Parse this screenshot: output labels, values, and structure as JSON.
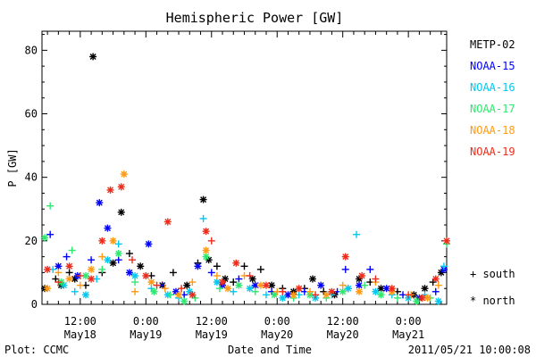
{
  "chart_data": {
    "type": "scatter",
    "title": "Hemispheric Power [GW]",
    "xlabel": "Date and Time",
    "ylabel": "P [GW]",
    "ylim": [
      0,
      86
    ],
    "xlim": [
      "2011-05-18 05:00",
      "2011-05-21 07:00"
    ],
    "x_ticks": [
      {
        "t": "2011-05-18 12:00",
        "label": "12:00",
        "sub": "May18"
      },
      {
        "t": "2011-05-19 00:00",
        "label": "0:00",
        "sub": "May19"
      },
      {
        "t": "2011-05-19 12:00",
        "label": "12:00",
        "sub": "May19"
      },
      {
        "t": "2011-05-20 00:00",
        "label": "0:00",
        "sub": "May20"
      },
      {
        "t": "2011-05-20 12:00",
        "label": "12:00",
        "sub": "May20"
      },
      {
        "t": "2011-05-21 00:00",
        "label": "0:00",
        "sub": "May21"
      }
    ],
    "y_ticks": [
      0,
      20,
      40,
      60,
      80
    ],
    "grid": false,
    "legend_position": "right",
    "marker_legend": [
      {
        "symbol": "+",
        "label": "south"
      },
      {
        "symbol": "*",
        "label": "north"
      }
    ],
    "series": [
      {
        "name": "METP-02",
        "color": "#000000",
        "points": [
          [
            "2011-05-18 05:30",
            5,
            "*"
          ],
          [
            "2011-05-18 07:30",
            8,
            "+"
          ],
          [
            "2011-05-18 08:30",
            6,
            "*"
          ],
          [
            "2011-05-18 10:00",
            10,
            "+"
          ],
          [
            "2011-05-18 11:00",
            8,
            "*"
          ],
          [
            "2011-05-18 13:00",
            6,
            "+"
          ],
          [
            "2011-05-18 14:20",
            78,
            "*"
          ],
          [
            "2011-05-18 16:00",
            10,
            "+"
          ],
          [
            "2011-05-18 18:00",
            13,
            "*"
          ],
          [
            "2011-05-18 19:30",
            29,
            "*"
          ],
          [
            "2011-05-18 21:00",
            16,
            "+"
          ],
          [
            "2011-05-18 23:00",
            12,
            "*"
          ],
          [
            "2011-05-19 01:00",
            9,
            "+"
          ],
          [
            "2011-05-19 03:00",
            6,
            "*"
          ],
          [
            "2011-05-19 05:00",
            10,
            "+"
          ],
          [
            "2011-05-19 07:30",
            6,
            "*"
          ],
          [
            "2011-05-19 09:30",
            13,
            "+"
          ],
          [
            "2011-05-19 10:30",
            33,
            "*"
          ],
          [
            "2011-05-19 11:30",
            14,
            "*"
          ],
          [
            "2011-05-19 13:00",
            12,
            "+"
          ],
          [
            "2011-05-19 14:30",
            8,
            "*"
          ],
          [
            "2011-05-19 16:00",
            7,
            "+"
          ],
          [
            "2011-05-19 18:00",
            12,
            "+"
          ],
          [
            "2011-05-19 19:30",
            8,
            "*"
          ],
          [
            "2011-05-19 21:00",
            11,
            "+"
          ],
          [
            "2011-05-19 23:00",
            6,
            "*"
          ],
          [
            "2011-05-20 01:00",
            5,
            "+"
          ],
          [
            "2011-05-20 03:00",
            4,
            "*"
          ],
          [
            "2011-05-20 05:00",
            5,
            "+"
          ],
          [
            "2011-05-20 06:30",
            8,
            "*"
          ],
          [
            "2011-05-20 08:30",
            4,
            "+"
          ],
          [
            "2011-05-20 10:30",
            3,
            "*"
          ],
          [
            "2011-05-20 13:00",
            5,
            "+"
          ],
          [
            "2011-05-20 15:00",
            8,
            "*"
          ],
          [
            "2011-05-20 17:00",
            7,
            "+"
          ],
          [
            "2011-05-20 19:00",
            5,
            "*"
          ],
          [
            "2011-05-20 22:00",
            4,
            "+"
          ],
          [
            "2011-05-21 01:00",
            3,
            "*"
          ],
          [
            "2011-05-21 03:00",
            5,
            "*"
          ],
          [
            "2011-05-21 04:30",
            7,
            "+"
          ],
          [
            "2011-05-21 06:00",
            10,
            "*"
          ]
        ]
      },
      {
        "name": "NOAA-15",
        "color": "#0000ff",
        "points": [
          [
            "2011-05-18 06:30",
            22,
            "+"
          ],
          [
            "2011-05-18 08:00",
            12,
            "*"
          ],
          [
            "2011-05-18 09:30",
            15,
            "+"
          ],
          [
            "2011-05-18 11:30",
            9,
            "*"
          ],
          [
            "2011-05-18 14:00",
            14,
            "+"
          ],
          [
            "2011-05-18 15:30",
            32,
            "*"
          ],
          [
            "2011-05-18 17:00",
            24,
            "*"
          ],
          [
            "2011-05-18 19:00",
            14,
            "+"
          ],
          [
            "2011-05-18 21:00",
            10,
            "*"
          ],
          [
            "2011-05-19 00:30",
            19,
            "*"
          ],
          [
            "2011-05-19 03:00",
            6,
            "+"
          ],
          [
            "2011-05-19 05:30",
            4,
            "*"
          ],
          [
            "2011-05-19 07:00",
            3,
            "+"
          ],
          [
            "2011-05-19 09:30",
            12,
            "*"
          ],
          [
            "2011-05-19 12:00",
            10,
            "+"
          ],
          [
            "2011-05-19 14:00",
            6,
            "*"
          ],
          [
            "2011-05-19 17:00",
            8,
            "+"
          ],
          [
            "2011-05-19 20:00",
            6,
            "*"
          ],
          [
            "2011-05-19 23:00",
            4,
            "+"
          ],
          [
            "2011-05-20 02:00",
            3,
            "*"
          ],
          [
            "2011-05-20 05:00",
            4,
            "+"
          ],
          [
            "2011-05-20 08:00",
            6,
            "*"
          ],
          [
            "2011-05-20 11:00",
            4,
            "+"
          ],
          [
            "2011-05-20 12:30",
            11,
            "+"
          ],
          [
            "2011-05-20 15:00",
            6,
            "*"
          ],
          [
            "2011-05-20 17:00",
            11,
            "+"
          ],
          [
            "2011-05-20 20:00",
            5,
            "*"
          ],
          [
            "2011-05-20 23:00",
            3,
            "+"
          ],
          [
            "2011-05-21 02:00",
            2,
            "*"
          ],
          [
            "2011-05-21 05:00",
            4,
            "+"
          ],
          [
            "2011-05-21 06:30",
            11,
            "*"
          ]
        ]
      },
      {
        "name": "NOAA-16",
        "color": "#00c8f0",
        "points": [
          [
            "2011-05-18 07:00",
            11,
            "+"
          ],
          [
            "2011-05-18 09:00",
            6,
            "*"
          ],
          [
            "2011-05-18 11:00",
            4,
            "+"
          ],
          [
            "2011-05-18 13:00",
            3,
            "*"
          ],
          [
            "2011-05-18 15:00",
            8,
            "+"
          ],
          [
            "2011-05-18 17:00",
            14,
            "*"
          ],
          [
            "2011-05-18 19:00",
            19,
            "+"
          ],
          [
            "2011-05-18 22:00",
            9,
            "*"
          ],
          [
            "2011-05-19 01:00",
            5,
            "+"
          ],
          [
            "2011-05-19 04:00",
            3,
            "*"
          ],
          [
            "2011-05-19 06:00",
            2,
            "+"
          ],
          [
            "2011-05-19 08:00",
            4,
            "*"
          ],
          [
            "2011-05-19 10:30",
            27,
            "+"
          ],
          [
            "2011-05-19 13:00",
            7,
            "*"
          ],
          [
            "2011-05-19 16:00",
            4,
            "+"
          ],
          [
            "2011-05-19 19:00",
            5,
            "*"
          ],
          [
            "2011-05-19 22:00",
            3,
            "+"
          ],
          [
            "2011-05-20 01:00",
            2,
            "*"
          ],
          [
            "2011-05-20 04:00",
            3,
            "+"
          ],
          [
            "2011-05-20 07:00",
            2,
            "*"
          ],
          [
            "2011-05-20 10:00",
            3,
            "+"
          ],
          [
            "2011-05-20 13:00",
            5,
            "*"
          ],
          [
            "2011-05-20 14:30",
            22,
            "+"
          ],
          [
            "2011-05-20 18:00",
            4,
            "*"
          ],
          [
            "2011-05-20 21:00",
            3,
            "+"
          ],
          [
            "2011-05-21 00:00",
            2,
            "*"
          ],
          [
            "2011-05-21 03:00",
            3,
            "+"
          ],
          [
            "2011-05-21 05:30",
            1,
            "*"
          ],
          [
            "2011-05-21 06:30",
            12,
            "+"
          ]
        ]
      },
      {
        "name": "NOAA-17",
        "color": "#2ee86e",
        "points": [
          [
            "2011-05-18 05:30",
            21,
            "*"
          ],
          [
            "2011-05-18 06:30",
            31,
            "+"
          ],
          [
            "2011-05-18 08:30",
            7,
            "*"
          ],
          [
            "2011-05-18 10:30",
            17,
            "+"
          ],
          [
            "2011-05-18 13:00",
            9,
            "*"
          ],
          [
            "2011-05-18 16:00",
            11,
            "+"
          ],
          [
            "2011-05-18 19:00",
            16,
            "*"
          ],
          [
            "2011-05-18 22:00",
            7,
            "+"
          ],
          [
            "2011-05-19 01:30",
            4,
            "*"
          ],
          [
            "2011-05-19 04:30",
            3,
            "+"
          ],
          [
            "2011-05-19 07:00",
            1,
            "*"
          ],
          [
            "2011-05-19 09:00",
            2,
            "+"
          ],
          [
            "2011-05-19 11:00",
            15,
            "*"
          ],
          [
            "2011-05-19 13:30",
            5,
            "+"
          ],
          [
            "2011-05-19 17:00",
            6,
            "*"
          ],
          [
            "2011-05-19 20:00",
            4,
            "+"
          ],
          [
            "2011-05-19 23:30",
            3,
            "*"
          ],
          [
            "2011-05-20 03:00",
            2,
            "+"
          ],
          [
            "2011-05-20 06:00",
            3,
            "*"
          ],
          [
            "2011-05-20 09:00",
            2,
            "+"
          ],
          [
            "2011-05-20 12:00",
            4,
            "*"
          ],
          [
            "2011-05-20 16:00",
            6,
            "+"
          ],
          [
            "2011-05-20 19:00",
            3,
            "*"
          ],
          [
            "2011-05-20 22:00",
            2,
            "+"
          ],
          [
            "2011-05-21 01:30",
            1,
            "*"
          ],
          [
            "2011-05-21 04:00",
            2,
            "+"
          ],
          [
            "2011-05-21 07:00",
            19,
            "+"
          ]
        ]
      },
      {
        "name": "NOAA-18",
        "color": "#ff9a14",
        "points": [
          [
            "2011-05-18 06:00",
            5,
            "*"
          ],
          [
            "2011-05-18 08:00",
            10,
            "+"
          ],
          [
            "2011-05-18 10:00",
            8,
            "*"
          ],
          [
            "2011-05-18 12:00",
            6,
            "+"
          ],
          [
            "2011-05-18 14:00",
            11,
            "*"
          ],
          [
            "2011-05-18 16:00",
            15,
            "+"
          ],
          [
            "2011-05-18 18:00",
            20,
            "*"
          ],
          [
            "2011-05-18 20:00",
            41,
            "*"
          ],
          [
            "2011-05-18 22:00",
            4,
            "+"
          ],
          [
            "2011-05-19 01:00",
            7,
            "*"
          ],
          [
            "2011-05-19 03:30",
            5,
            "+"
          ],
          [
            "2011-05-19 06:00",
            3,
            "*"
          ],
          [
            "2011-05-19 08:30",
            7,
            "+"
          ],
          [
            "2011-05-19 11:00",
            17,
            "*"
          ],
          [
            "2011-05-19 13:00",
            9,
            "+"
          ],
          [
            "2011-05-19 15:00",
            5,
            "*"
          ],
          [
            "2011-05-19 18:00",
            9,
            "+"
          ],
          [
            "2011-05-19 21:00",
            6,
            "*"
          ],
          [
            "2011-05-20 00:00",
            4,
            "+"
          ],
          [
            "2011-05-20 03:00",
            3,
            "*"
          ],
          [
            "2011-05-20 06:00",
            4,
            "+"
          ],
          [
            "2011-05-20 09:00",
            3,
            "*"
          ],
          [
            "2011-05-20 12:00",
            6,
            "+"
          ],
          [
            "2011-05-20 15:00",
            4,
            "*"
          ],
          [
            "2011-05-20 18:00",
            7,
            "+"
          ],
          [
            "2011-05-20 21:00",
            4,
            "*"
          ],
          [
            "2011-05-21 00:30",
            3,
            "+"
          ],
          [
            "2011-05-21 03:30",
            2,
            "*"
          ],
          [
            "2011-05-21 05:30",
            6,
            "+"
          ]
        ]
      },
      {
        "name": "NOAA-19",
        "color": "#ee2b1a",
        "points": [
          [
            "2011-05-18 06:00",
            11,
            "*"
          ],
          [
            "2011-05-18 08:00",
            7,
            "+"
          ],
          [
            "2011-05-18 10:00",
            12,
            "*"
          ],
          [
            "2011-05-18 12:00",
            9,
            "+"
          ],
          [
            "2011-05-18 14:00",
            8,
            "*"
          ],
          [
            "2011-05-18 16:00",
            20,
            "*"
          ],
          [
            "2011-05-18 17:30",
            36,
            "*"
          ],
          [
            "2011-05-18 19:30",
            37,
            "*"
          ],
          [
            "2011-05-18 21:30",
            14,
            "+"
          ],
          [
            "2011-05-19 00:00",
            9,
            "*"
          ],
          [
            "2011-05-19 02:00",
            6,
            "+"
          ],
          [
            "2011-05-19 04:00",
            26,
            "*"
          ],
          [
            "2011-05-19 06:30",
            5,
            "+"
          ],
          [
            "2011-05-19 08:30",
            3,
            "*"
          ],
          [
            "2011-05-19 11:00",
            23,
            "*"
          ],
          [
            "2011-05-19 12:00",
            20,
            "+"
          ],
          [
            "2011-05-19 14:00",
            7,
            "*"
          ],
          [
            "2011-05-19 16:30",
            13,
            "*"
          ],
          [
            "2011-05-19 19:00",
            9,
            "+"
          ],
          [
            "2011-05-19 22:00",
            6,
            "*"
          ],
          [
            "2011-05-20 01:00",
            4,
            "+"
          ],
          [
            "2011-05-20 04:00",
            5,
            "*"
          ],
          [
            "2011-05-20 07:00",
            3,
            "+"
          ],
          [
            "2011-05-20 10:00",
            4,
            "*"
          ],
          [
            "2011-05-20 12:30",
            15,
            "*"
          ],
          [
            "2011-05-20 15:30",
            9,
            "*"
          ],
          [
            "2011-05-20 18:00",
            8,
            "+"
          ],
          [
            "2011-05-20 21:00",
            5,
            "*"
          ],
          [
            "2011-05-21 00:00",
            3,
            "+"
          ],
          [
            "2011-05-21 02:30",
            2,
            "*"
          ],
          [
            "2011-05-21 05:00",
            8,
            "*"
          ],
          [
            "2011-05-21 07:00",
            20,
            "*"
          ]
        ]
      }
    ]
  },
  "footer": {
    "plot_credit": "Plot: CCMC",
    "timestamp": "2011/05/21 10:00:08"
  }
}
